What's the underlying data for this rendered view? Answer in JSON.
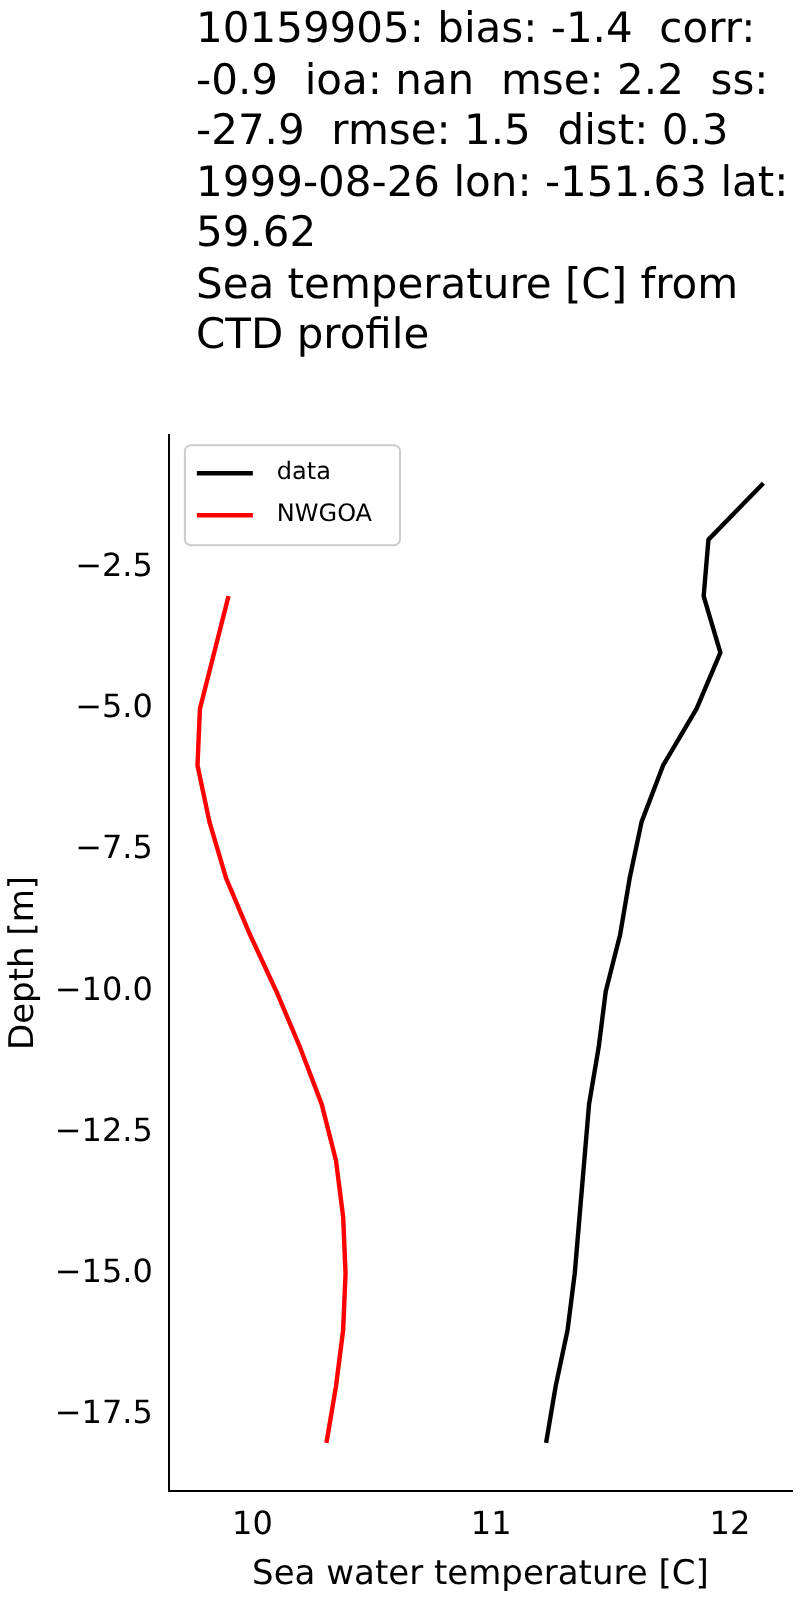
{
  "chart_data": {
    "type": "line",
    "title": "10159905: bias: -1.4  corr: -0.9  ioa: nan  mse: 2.2  ss: -27.9  rmse: 1.5  dist: 0.3\n1999-08-26 lon: -151.63 lat: 59.62\nSea temperature [C] from CTD profile",
    "xlabel": "Sea water temperature [C]",
    "ylabel": "Depth [m]",
    "series": [
      {
        "name": "data",
        "color": "#000000",
        "x": [
          12.14,
          11.91,
          11.89,
          11.96,
          11.86,
          11.72,
          11.63,
          11.58,
          11.54,
          11.48,
          11.45,
          11.41,
          11.39,
          11.37,
          11.35,
          11.32,
          11.27,
          11.23
        ],
        "values": [
          -1,
          -2,
          -3,
          -4,
          -5,
          -6,
          -7,
          -8,
          -9,
          -10,
          -11,
          -12,
          -13,
          -14,
          -15,
          -16,
          -17,
          -18
        ]
      },
      {
        "name": "NWGOA",
        "color": "#ff0000",
        "x": [
          9.9,
          9.78,
          9.77,
          9.82,
          9.89,
          9.99,
          10.1,
          10.2,
          10.29,
          10.35,
          10.38,
          10.39,
          10.38,
          10.35,
          10.31
        ],
        "values": [
          -3,
          -5,
          -6,
          -7,
          -8,
          -9,
          -10,
          -11,
          -12,
          -13,
          -14,
          -15,
          -16,
          -17,
          -18
        ]
      }
    ],
    "xlim": [
      9.65,
      12.26
    ],
    "xticks": [
      10,
      11,
      12
    ],
    "ylim": [
      -18.85,
      -0.15
    ],
    "yticks": [
      {
        "value": -2.5,
        "label": "−2.5"
      },
      {
        "value": -5,
        "label": "−5.0"
      },
      {
        "value": -7.5,
        "label": "−7.5"
      },
      {
        "value": -10,
        "label": "−10.0"
      },
      {
        "value": -12.5,
        "label": "−12.5"
      },
      {
        "value": -15,
        "label": "−15.0"
      },
      {
        "value": -17.5,
        "label": "−17.5"
      }
    ],
    "legend": "top left",
    "line_style": "solid",
    "marker": "none",
    "grid": false
  }
}
